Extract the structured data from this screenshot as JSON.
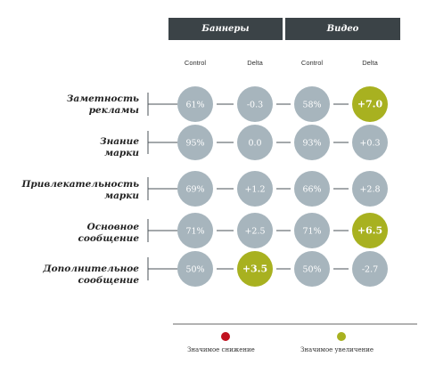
{
  "chart_data": {
    "type": "table",
    "groups": [
      "Баннеры",
      "Видео"
    ],
    "columns": [
      "Control",
      "Delta",
      "Control",
      "Delta"
    ],
    "rows": [
      {
        "label": [
          "Заметность",
          "рекламы"
        ],
        "values": [
          "61%",
          "-0.3",
          "58%",
          "+7.0"
        ],
        "significant": [
          "none",
          "none",
          "none",
          "up"
        ]
      },
      {
        "label": [
          "Знание",
          "марки"
        ],
        "values": [
          "95%",
          "0.0",
          "93%",
          "+0.3"
        ],
        "significant": [
          "none",
          "none",
          "none",
          "none"
        ]
      },
      {
        "label": [
          "Привлекательность",
          "марки"
        ],
        "values": [
          "69%",
          "+1.2",
          "66%",
          "+2.8"
        ],
        "significant": [
          "none",
          "none",
          "none",
          "none"
        ]
      },
      {
        "label": [
          "Основное",
          "сообщение"
        ],
        "values": [
          "71%",
          "+2.5",
          "71%",
          "+6.5"
        ],
        "significant": [
          "none",
          "none",
          "none",
          "up"
        ]
      },
      {
        "label": [
          "Дополнительное",
          "сообщение"
        ],
        "values": [
          "50%",
          "+3.5",
          "50%",
          "-2.7"
        ],
        "significant": [
          "none",
          "up",
          "none",
          "none"
        ]
      }
    ],
    "legend": [
      {
        "label": "Значимое снижение",
        "color": "#c1121f"
      },
      {
        "label": "Значимое увеличение",
        "color": "#a8b120"
      }
    ],
    "colors": {
      "neutral": "#a7b5bd",
      "up": "#a8b120",
      "down": "#c1121f",
      "header": "#3b4347"
    }
  }
}
